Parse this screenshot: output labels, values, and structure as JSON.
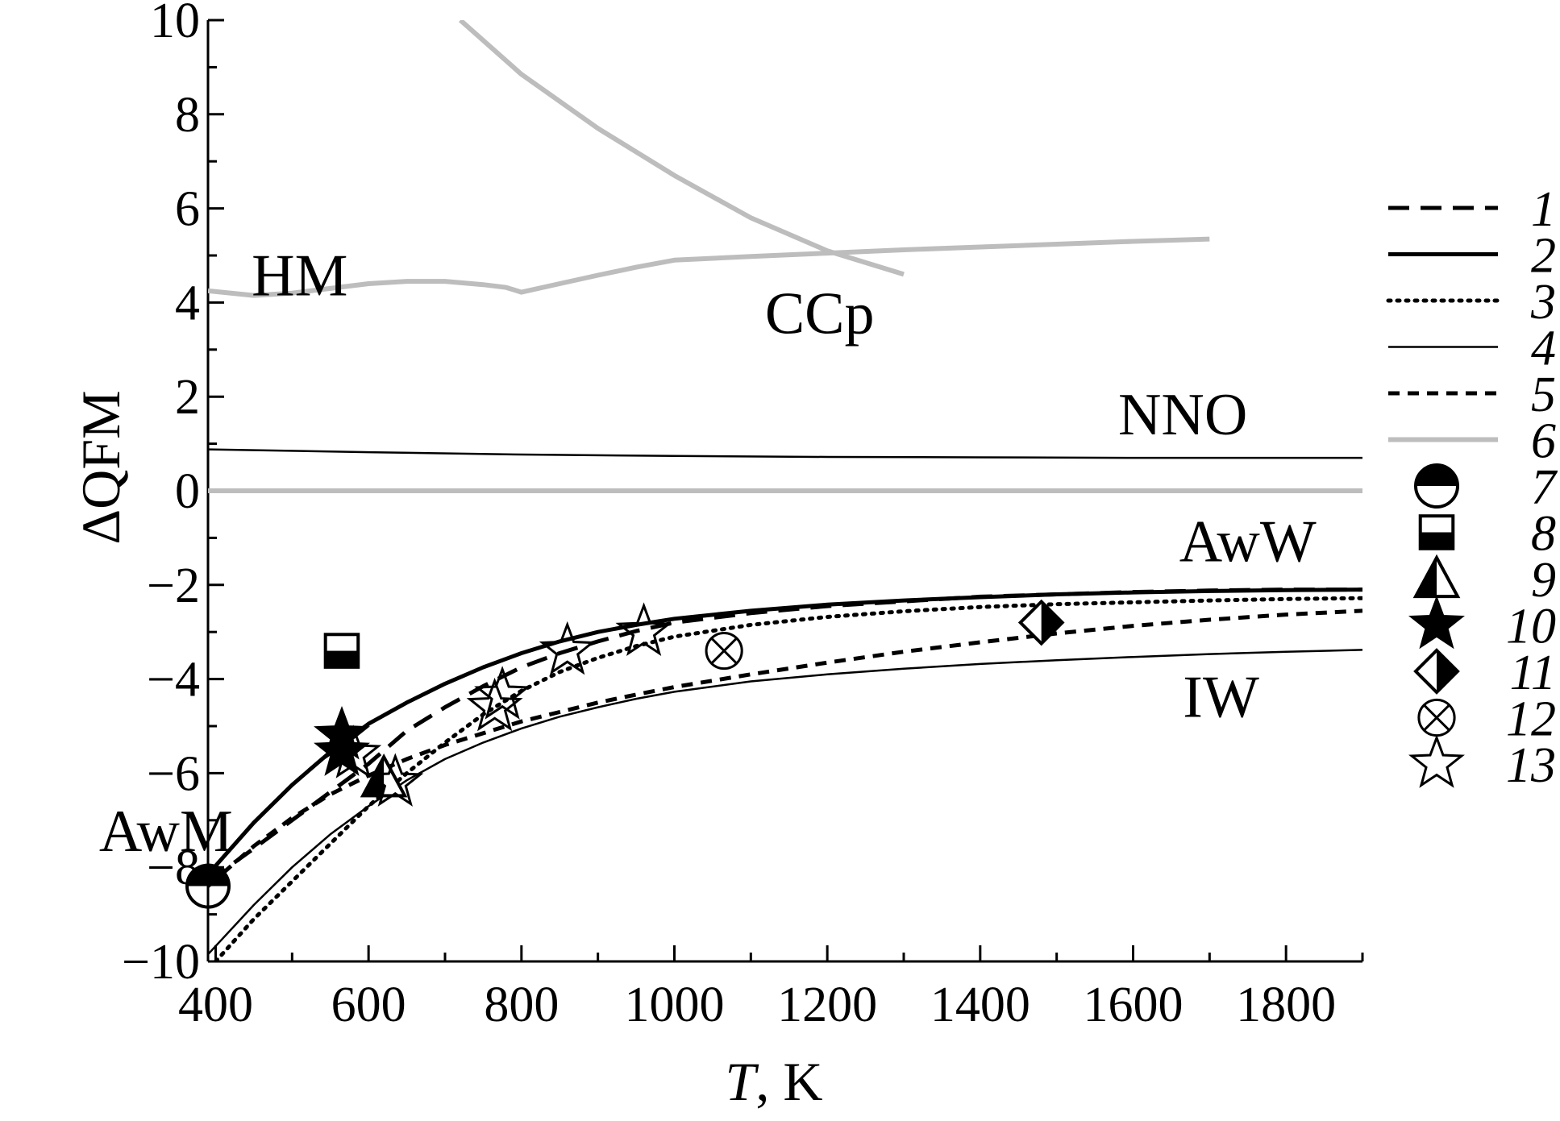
{
  "chart_data": {
    "type": "line",
    "xlabel_var": "T",
    "xlabel_unit": ", K",
    "ylabel": "ΔQFM",
    "xlim": [
      390,
      1900
    ],
    "ylim": [
      -10,
      10
    ],
    "x_ticks": [
      400,
      600,
      800,
      1000,
      1200,
      1400,
      1600,
      1800
    ],
    "y_ticks": [
      10,
      8,
      6,
      4,
      2,
      0,
      -2,
      -4,
      -6,
      -8,
      -10
    ],
    "x_tick_labels": [
      "400",
      "600",
      "800",
      "1000",
      "1200",
      "1400",
      "1600",
      "1800"
    ],
    "y_tick_labels": [
      "10",
      "8",
      "6",
      "4",
      "2",
      "0",
      "−2",
      "−4",
      "−6",
      "−8",
      "−10"
    ],
    "grid": false,
    "legend_position": "right",
    "colors": {
      "black": "#000000",
      "gray": "#bdbdbd"
    },
    "annotations": [
      {
        "text": "HM",
        "x": 510,
        "y": 4.15
      },
      {
        "text": "CCp",
        "x": 1190,
        "y": 3.35
      },
      {
        "text": "NNO",
        "x": 1665,
        "y": 1.2
      },
      {
        "text": "AwW",
        "x": 1750,
        "y": -1.5
      },
      {
        "text": "IW",
        "x": 1715,
        "y": -4.8
      },
      {
        "text": "AwM",
        "x": 335,
        "y": -7.65
      }
    ],
    "series": [
      {
        "name": "1",
        "style": "long-dash",
        "color": "#000000",
        "x": [
          390,
          450,
          500,
          550,
          600,
          650,
          700,
          750,
          800,
          850,
          900,
          950,
          1000,
          1100,
          1200,
          1300,
          1400,
          1500,
          1600,
          1700,
          1800,
          1900
        ],
        "y": [
          -8.3,
          -7.6,
          -7.0,
          -6.4,
          -5.8,
          -5.1,
          -4.6,
          -4.15,
          -3.75,
          -3.45,
          -3.2,
          -2.98,
          -2.8,
          -2.6,
          -2.45,
          -2.35,
          -2.25,
          -2.2,
          -2.15,
          -2.12,
          -2.1,
          -2.1
        ]
      },
      {
        "name": "2",
        "style": "solid-thick",
        "color": "#000000",
        "x": [
          390,
          450,
          500,
          550,
          600,
          650,
          700,
          750,
          800,
          850,
          900,
          950,
          1000,
          1100,
          1200,
          1300,
          1400,
          1500,
          1600,
          1700,
          1800,
          1900
        ],
        "y": [
          -8.15,
          -7.05,
          -6.25,
          -5.55,
          -4.95,
          -4.5,
          -4.1,
          -3.75,
          -3.45,
          -3.2,
          -3.0,
          -2.85,
          -2.72,
          -2.55,
          -2.42,
          -2.33,
          -2.26,
          -2.2,
          -2.16,
          -2.13,
          -2.11,
          -2.1
        ]
      },
      {
        "name": "3",
        "style": "dotted",
        "color": "#000000",
        "x": [
          400,
          450,
          500,
          550,
          600,
          650,
          700,
          750,
          800,
          850,
          900,
          950,
          1000,
          1100,
          1200,
          1300,
          1400,
          1500,
          1600,
          1700,
          1800,
          1900
        ],
        "y": [
          -10,
          -9.1,
          -8.3,
          -7.5,
          -6.7,
          -6.0,
          -5.35,
          -4.75,
          -4.25,
          -3.85,
          -3.55,
          -3.3,
          -3.1,
          -2.85,
          -2.68,
          -2.56,
          -2.47,
          -2.41,
          -2.37,
          -2.33,
          -2.3,
          -2.28
        ]
      },
      {
        "name": "4",
        "style": "solid-thin",
        "color": "#000000",
        "x": [
          390,
          450,
          500,
          550,
          600,
          650,
          700,
          750,
          800,
          850,
          900,
          950,
          1000,
          1100,
          1200,
          1300,
          1400,
          1500,
          1600,
          1700,
          1800,
          1900
        ],
        "y": [
          -9.85,
          -8.8,
          -8.0,
          -7.3,
          -6.7,
          -6.15,
          -5.7,
          -5.35,
          -5.05,
          -4.8,
          -4.6,
          -4.42,
          -4.27,
          -4.05,
          -3.9,
          -3.78,
          -3.68,
          -3.6,
          -3.53,
          -3.47,
          -3.42,
          -3.38
        ]
      },
      {
        "name": "5",
        "style": "short-dash",
        "color": "#000000",
        "x": [
          390,
          450,
          500,
          550,
          600,
          650,
          700,
          750,
          800,
          850,
          900,
          950,
          1000,
          1100,
          1200,
          1300,
          1400,
          1500,
          1600,
          1700,
          1800,
          1900
        ],
        "y": [
          -8.4,
          -7.55,
          -6.95,
          -6.45,
          -6.05,
          -5.7,
          -5.4,
          -5.15,
          -4.9,
          -4.7,
          -4.5,
          -4.33,
          -4.17,
          -3.9,
          -3.65,
          -3.42,
          -3.22,
          -3.03,
          -2.87,
          -2.74,
          -2.63,
          -2.55
        ]
      },
      {
        "name": "6",
        "style": "solid",
        "color": "#bdbdbd",
        "x": [
          390,
          1900
        ],
        "y": [
          0,
          0
        ]
      },
      {
        "name": "",
        "style": "solid-thin",
        "color": "#000000",
        "x": [
          390,
          600,
          800,
          1000,
          1200,
          1400,
          1600,
          1800,
          1900
        ],
        "y": [
          0.88,
          0.82,
          0.77,
          0.74,
          0.72,
          0.71,
          0.7,
          0.7,
          0.7
        ]
      },
      {
        "name": "",
        "style": "solid",
        "color": "#bdbdbd",
        "x": [
          390,
          450,
          500,
          550,
          600,
          650,
          700,
          750,
          780,
          800,
          850,
          900,
          950,
          1000,
          1100,
          1200,
          1300,
          1400,
          1500,
          1600,
          1700
        ],
        "y": [
          4.25,
          4.15,
          4.2,
          4.3,
          4.4,
          4.45,
          4.45,
          4.38,
          4.32,
          4.22,
          4.4,
          4.58,
          4.75,
          4.9,
          4.98,
          5.05,
          5.12,
          5.18,
          5.24,
          5.3,
          5.35
        ]
      },
      {
        "name": "",
        "style": "solid",
        "color": "#bdbdbd",
        "x": [
          720,
          800,
          900,
          1000,
          1100,
          1200,
          1300
        ],
        "y": [
          10,
          8.85,
          7.7,
          6.7,
          5.8,
          5.1,
          4.6
        ]
      }
    ],
    "markers": [
      {
        "name": "7",
        "symbol": "circle-half-top",
        "x": 390,
        "y": -8.4
      },
      {
        "name": "8",
        "symbol": "square-half-bottom",
        "x": 565,
        "y": -3.4
      },
      {
        "name": "9",
        "symbol": "triangle-half-left",
        "x": 620,
        "y": -6.1
      },
      {
        "name": "10",
        "symbol": "star-filled",
        "x": 565,
        "y": -5.2
      },
      {
        "name": "10",
        "symbol": "star-filled",
        "x": 565,
        "y": -5.55
      },
      {
        "name": "11",
        "symbol": "diamond-half-right",
        "x": 1480,
        "y": -2.8
      },
      {
        "name": "12",
        "symbol": "circle-x",
        "x": 1065,
        "y": -3.4
      },
      {
        "name": "13",
        "symbol": "star-open",
        "x": 580,
        "y": -5.6
      },
      {
        "name": "13",
        "symbol": "star-open",
        "x": 635,
        "y": -6.2
      },
      {
        "name": "13",
        "symbol": "star-open",
        "x": 765,
        "y": -4.6
      },
      {
        "name": "13",
        "symbol": "star-open",
        "x": 775,
        "y": -4.35
      },
      {
        "name": "13",
        "symbol": "star-open",
        "x": 860,
        "y": -3.4
      },
      {
        "name": "13",
        "symbol": "star-open",
        "x": 960,
        "y": -3.0
      }
    ],
    "legend": [
      {
        "label": "1",
        "kind": "line",
        "style": "long-dash",
        "color": "#000000"
      },
      {
        "label": "2",
        "kind": "line",
        "style": "solid-thick",
        "color": "#000000"
      },
      {
        "label": "3",
        "kind": "line",
        "style": "dotted",
        "color": "#000000"
      },
      {
        "label": "4",
        "kind": "line",
        "style": "solid-thin",
        "color": "#000000"
      },
      {
        "label": "5",
        "kind": "line",
        "style": "short-dash",
        "color": "#000000"
      },
      {
        "label": "6",
        "kind": "line",
        "style": "solid",
        "color": "#bdbdbd"
      },
      {
        "label": "7",
        "kind": "marker",
        "symbol": "circle-half-top"
      },
      {
        "label": "8",
        "kind": "marker",
        "symbol": "square-half-bottom"
      },
      {
        "label": "9",
        "kind": "marker",
        "symbol": "triangle-half-left"
      },
      {
        "label": "10",
        "kind": "marker",
        "symbol": "star-filled"
      },
      {
        "label": "11",
        "kind": "marker",
        "symbol": "diamond-half-right"
      },
      {
        "label": "12",
        "kind": "marker",
        "symbol": "circle-x"
      },
      {
        "label": "13",
        "kind": "marker",
        "symbol": "star-open"
      }
    ]
  }
}
